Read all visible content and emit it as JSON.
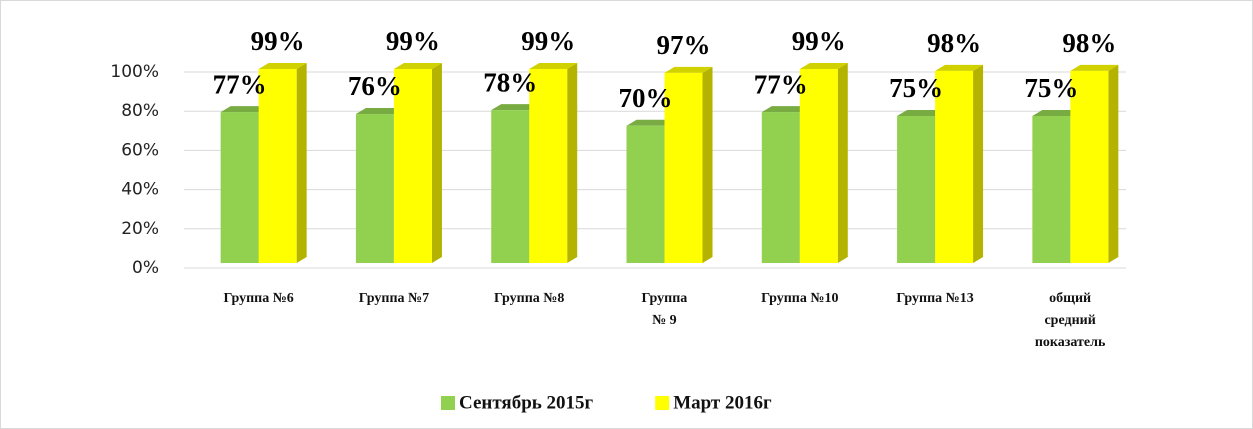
{
  "chart_data": {
    "type": "bar3d",
    "categories": [
      "Группа №6",
      "Группа №7",
      "Группа №8",
      "Группа № 9",
      "Группа №10",
      "Группа №13",
      "общий средний показатель"
    ],
    "series": [
      {
        "name": "Сентябрь 2015г",
        "color": "#92d050",
        "values": [
          77,
          76,
          78,
          70,
          77,
          75,
          75
        ],
        "value_labels": [
          "77%",
          "76%",
          "78%",
          "70%",
          "77%",
          "75%",
          "75%"
        ]
      },
      {
        "name": "Март 2016г",
        "color": "#ffff00",
        "values": [
          99,
          99,
          99,
          97,
          99,
          98,
          98
        ],
        "value_labels": [
          "99%",
          "99%",
          "99%",
          "97%",
          "99%",
          "98%",
          "98%"
        ]
      }
    ],
    "ylim": [
      0,
      100
    ],
    "yticks": [
      {
        "value": 0,
        "label": "0%"
      },
      {
        "value": 20,
        "label": "20%"
      },
      {
        "value": 40,
        "label": "40%"
      },
      {
        "value": 60,
        "label": "60%"
      },
      {
        "value": 80,
        "label": "80%"
      },
      {
        "value": 100,
        "label": "100%"
      }
    ],
    "grid": true,
    "legend": "bottom"
  }
}
